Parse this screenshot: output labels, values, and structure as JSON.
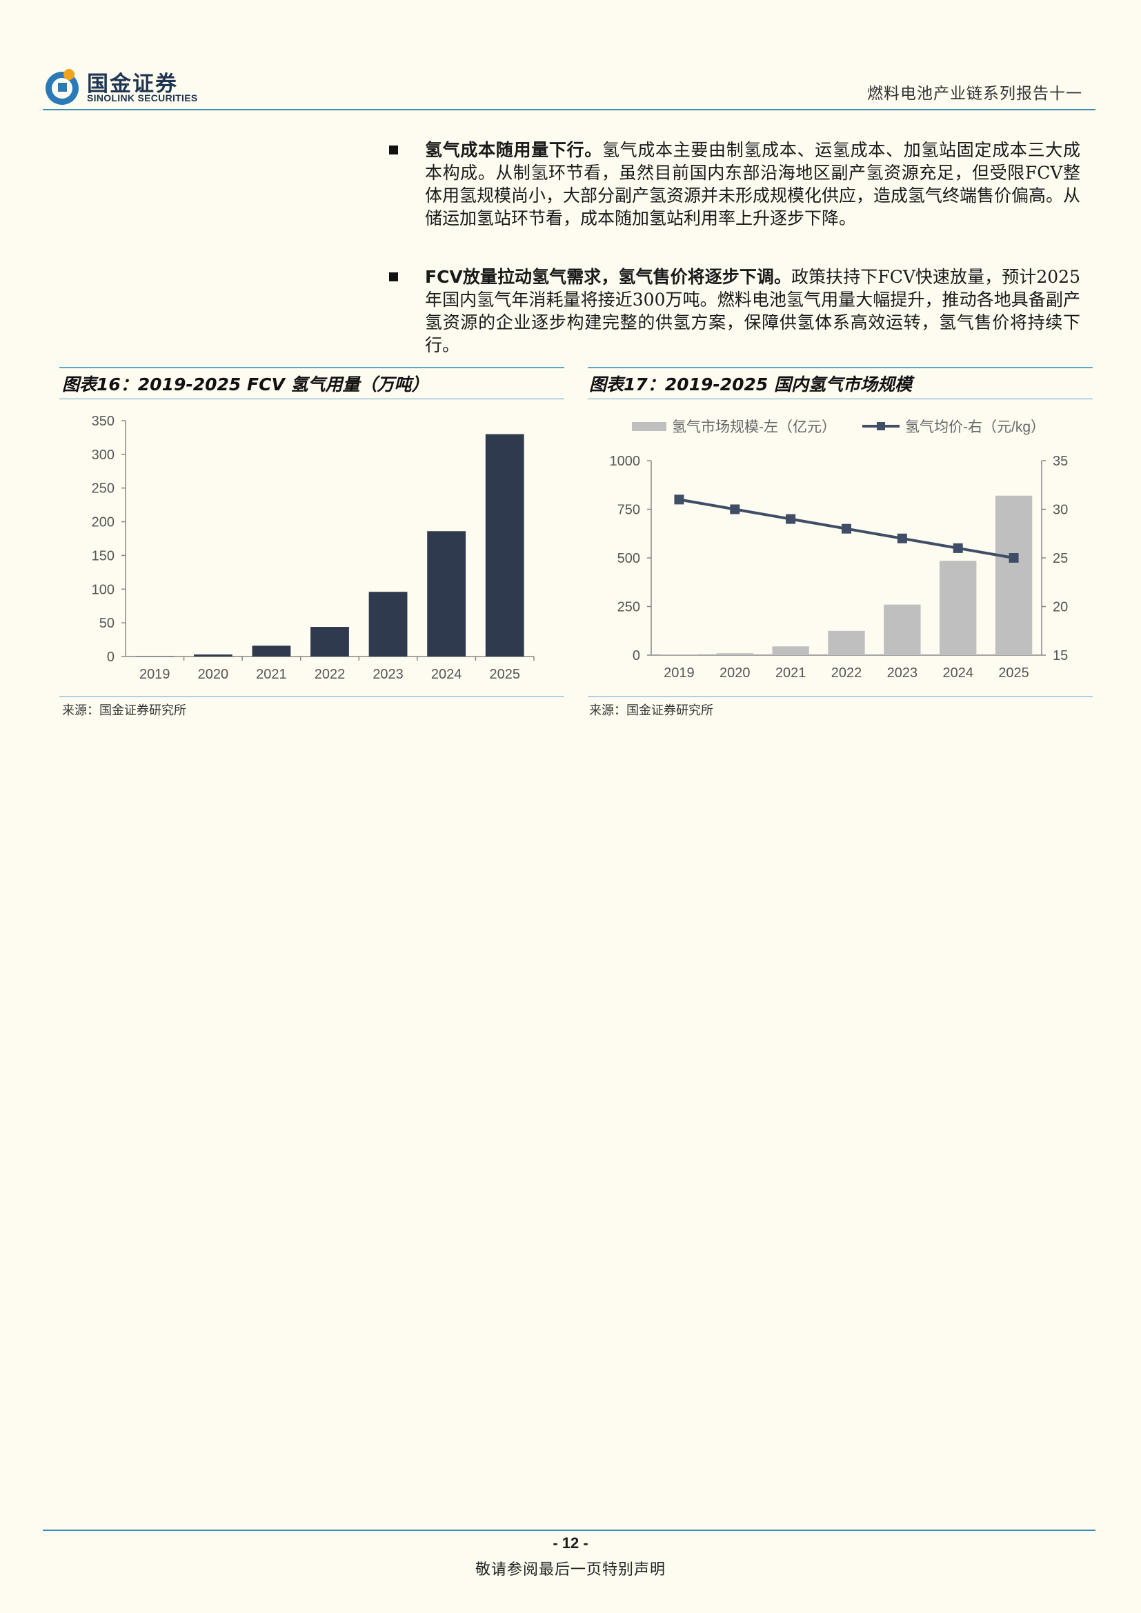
{
  "header": {
    "logo_cn": "国金证券",
    "logo_en": "SINOLINK SECURITIES",
    "report_title": "燃料电池产业链系列报告十一"
  },
  "bullets": [
    {
      "bold": "氢气成本随用量下行。",
      "text": "氢气成本主要由制氢成本、运氢成本、加氢站固定成本三大成本构成。从制氢环节看，虽然目前国内东部沿海地区副产氢资源充足，但受限FCV整体用氢规模尚小，大部分副产氢资源并未形成规模化供应，造成氢气终端售价偏高。从储运加氢站环节看，成本随加氢站利用率上升逐步下降。"
    },
    {
      "bold": "FCV放量拉动氢气需求，氢气售价将逐步下调。",
      "text": "政策扶持下FCV快速放量，预计2025年国内氢气年消耗量将接近300万吨。燃料电池氢气用量大幅提升，推动各地具备副产氢资源的企业逐步构建完整的供氢方案，保障供氢体系高效运转，氢气售价将持续下行。"
    }
  ],
  "figures": {
    "fig16": {
      "title": "图表16：2019-2025 FCV 氢气用量（万吨）",
      "source": "来源：国金证券研究所"
    },
    "fig17": {
      "title": "图表17：2019-2025 国内氢气市场规模",
      "source": "来源：国金证券研究所"
    }
  },
  "chart_data": [
    {
      "type": "bar",
      "title": "",
      "categories": [
        "2019",
        "2020",
        "2021",
        "2022",
        "2023",
        "2024",
        "2025"
      ],
      "values": [
        0.5,
        3,
        16,
        44,
        96,
        186,
        330
      ],
      "ylim": [
        0,
        350
      ],
      "yticks": [
        "0",
        "50",
        "100",
        "150",
        "200",
        "250",
        "300",
        "350"
      ],
      "color": "#2f3a4e",
      "grid": false
    },
    {
      "type": "bar+line",
      "title": "",
      "categories": [
        "2019",
        "2020",
        "2021",
        "2022",
        "2023",
        "2024",
        "2025"
      ],
      "series": [
        {
          "name": "氢气市场规模-左（亿元）",
          "type": "bar",
          "axis": "left",
          "values": [
            2,
            10,
            45,
            125,
            260,
            485,
            820
          ],
          "color": "#bfbfbf"
        },
        {
          "name": "氢气均价-右（元/kg）",
          "type": "line",
          "axis": "right",
          "values": [
            31,
            30,
            29,
            28,
            27,
            26,
            25
          ],
          "color": "#3f4e66"
        }
      ],
      "ylim_left": [
        0,
        1000
      ],
      "yticks_left": [
        "0",
        "250",
        "500",
        "750",
        "1000"
      ],
      "ylim_right": [
        15,
        35
      ],
      "yticks_right": [
        "15",
        "20",
        "25",
        "30",
        "35"
      ],
      "legend": "top",
      "grid": false
    }
  ],
  "footer": {
    "page_number": "- 12 -",
    "disclaimer": "敬请参阅最后一页特别声明"
  }
}
